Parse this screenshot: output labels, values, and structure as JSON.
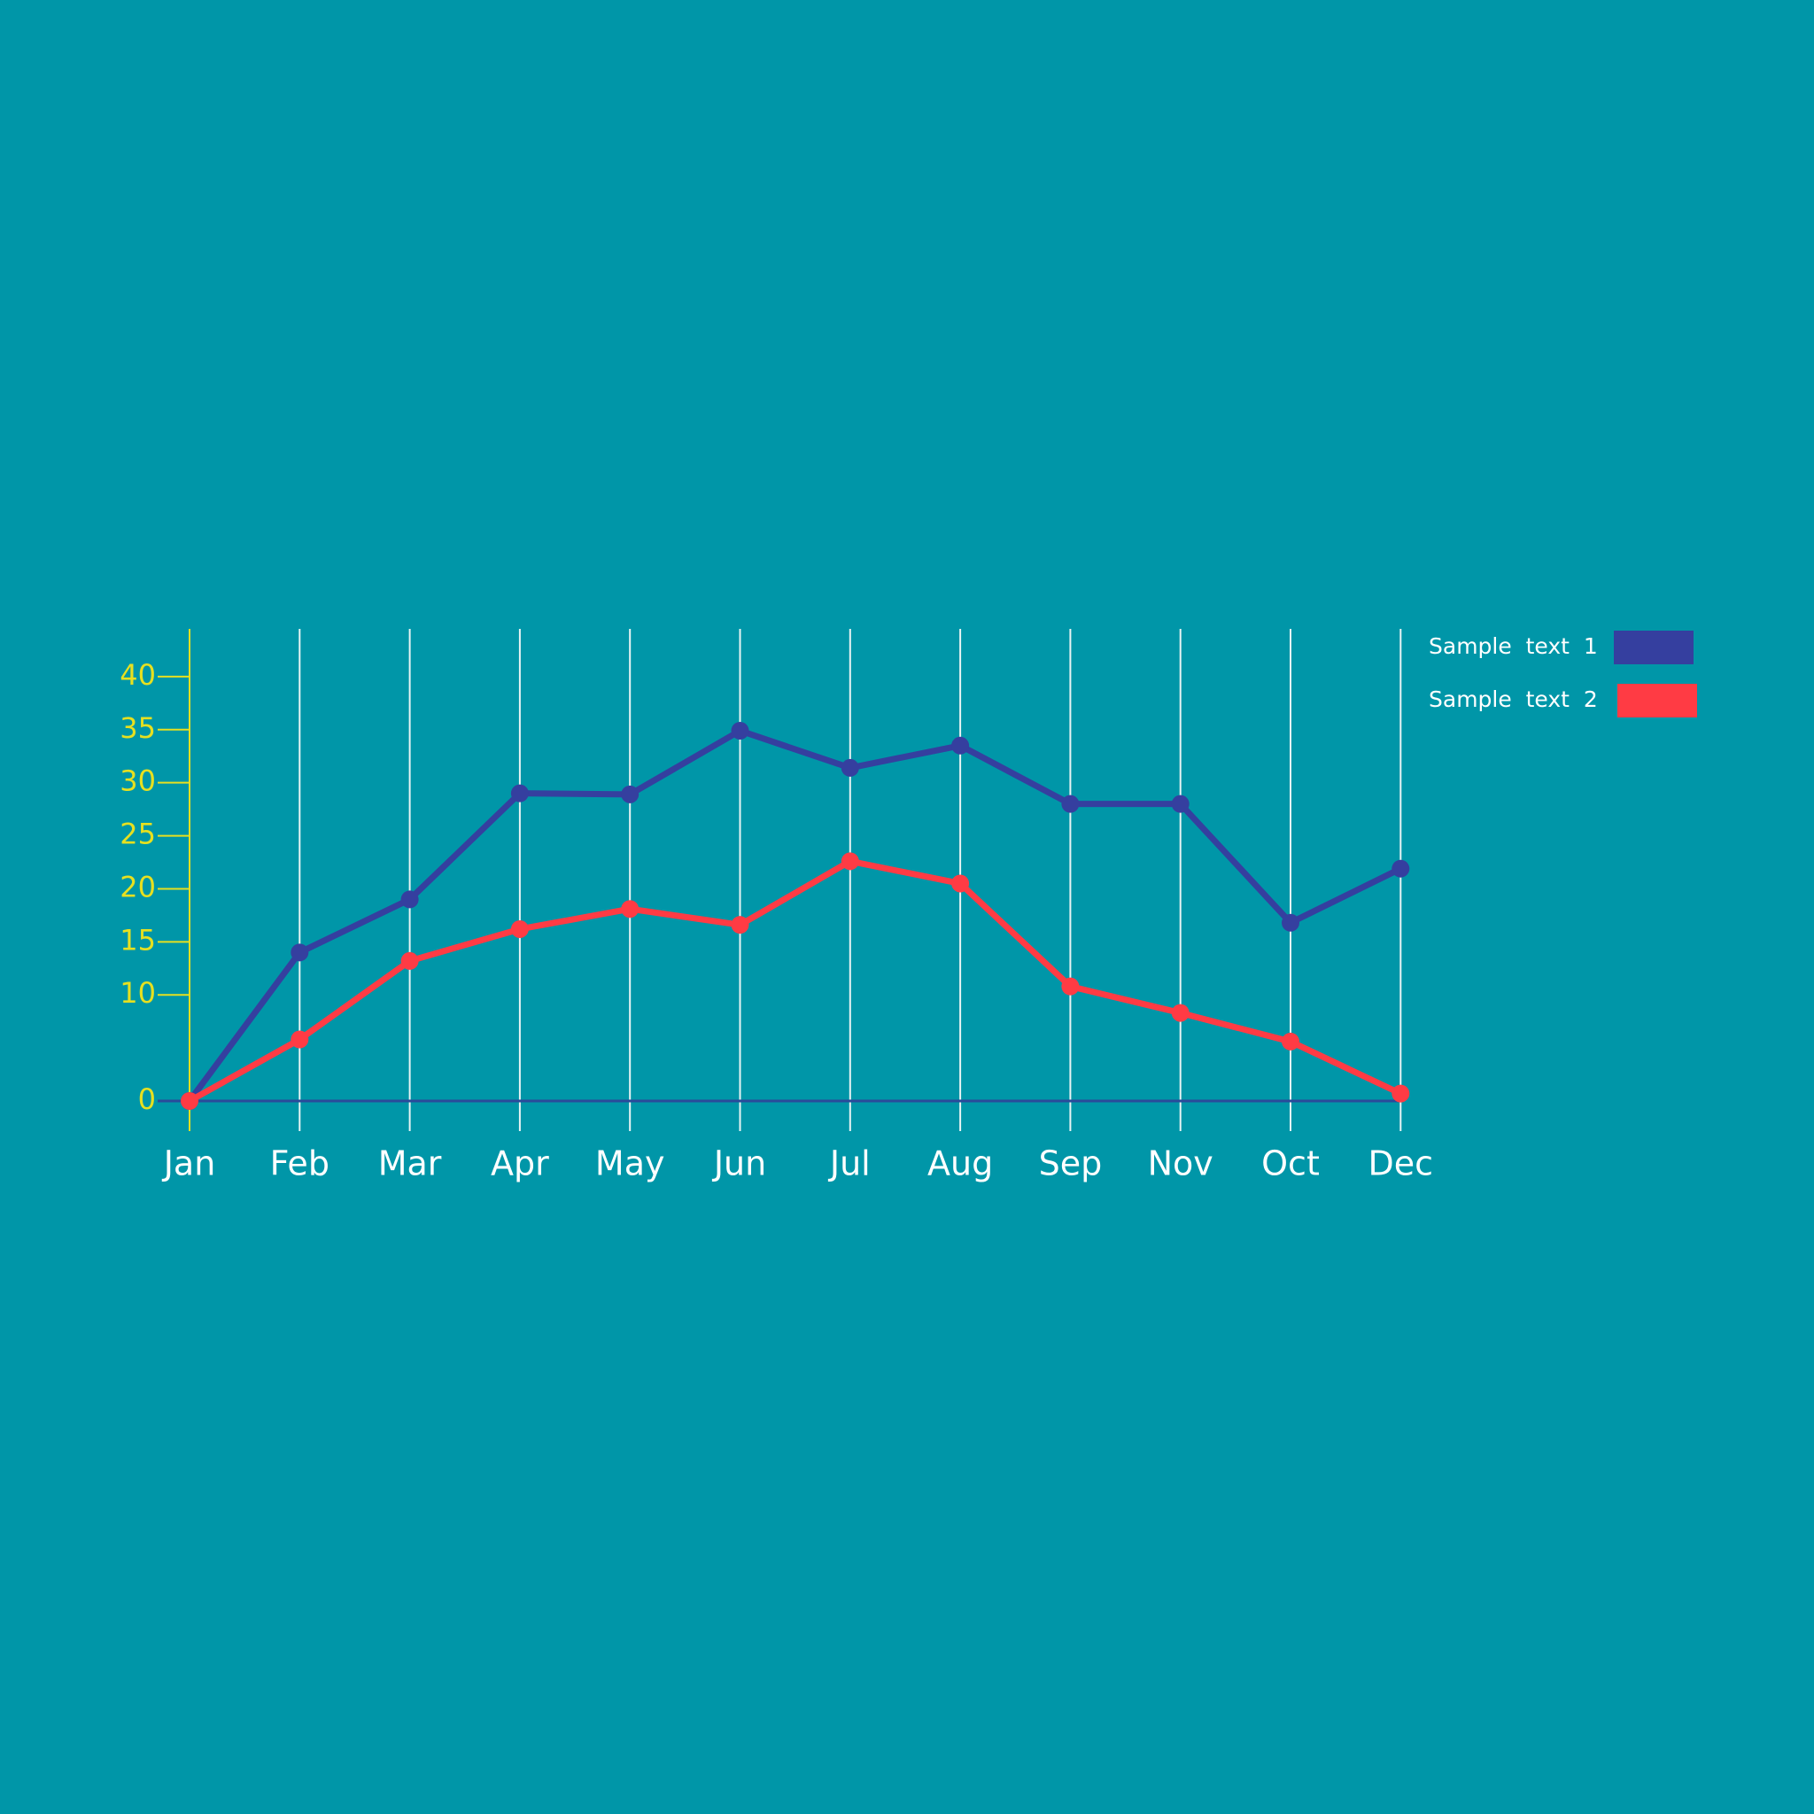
{
  "chart_data": {
    "type": "line",
    "categories": [
      "Jan",
      "Feb",
      "Mar",
      "Apr",
      "May",
      "Jun",
      "Jul",
      "Aug",
      "Sep",
      "Nov",
      "Oct",
      "Dec"
    ],
    "series": [
      {
        "name": "Sample  text  1",
        "color": "#353f9f",
        "values": [
          0,
          14,
          19,
          29,
          28.9,
          34.9,
          31.4,
          33.5,
          28,
          28,
          16.8,
          21.9
        ]
      },
      {
        "name": "Sample  text  2",
        "color": "#ff3b44",
        "values": [
          0,
          5.8,
          13.2,
          16.2,
          18.1,
          16.6,
          22.6,
          20.5,
          10.8,
          8.3,
          5.6,
          0.7
        ]
      }
    ],
    "ylim": [
      0,
      44
    ],
    "yticks": [
      0,
      10,
      15,
      20,
      25,
      30,
      35,
      40
    ],
    "grid": true,
    "legend": "upper right"
  }
}
